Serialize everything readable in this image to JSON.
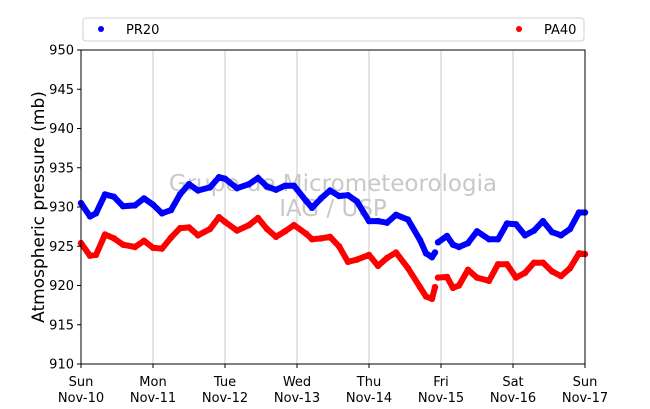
{
  "chart_data": {
    "type": "scatter",
    "title": "",
    "xlabel": "",
    "ylabel": "Atmospheric pressure (mb)",
    "ylim": [
      910,
      950
    ],
    "yticks": [
      910,
      915,
      920,
      925,
      930,
      935,
      940,
      945,
      950
    ],
    "xlim": [
      "2024-11-10",
      "2024-11-17"
    ],
    "xticks": [
      {
        "day": "Sun",
        "date": "Nov-10"
      },
      {
        "day": "Mon",
        "date": "Nov-11"
      },
      {
        "day": "Tue",
        "date": "Nov-12"
      },
      {
        "day": "Wed",
        "date": "Nov-13"
      },
      {
        "day": "Thu",
        "date": "Nov-14"
      },
      {
        "day": "Fri",
        "date": "Nov-15"
      },
      {
        "day": "Sat",
        "date": "Nov-16"
      },
      {
        "day": "Sun",
        "date": "Nov-17"
      }
    ],
    "grid": "x-major",
    "legend": "top",
    "watermark": [
      "Grupo de Micrometeorologia",
      "IAG / USP"
    ],
    "series": [
      {
        "name": "PR20",
        "color": "#0000ff",
        "x": [
          "2024-11-10 00:00",
          "2024-11-10 03:00",
          "2024-11-10 05:00",
          "2024-11-10 08:00",
          "2024-11-10 11:00",
          "2024-11-10 14:00",
          "2024-11-10 18:00",
          "2024-11-10 21:00",
          "2024-11-11 00:00",
          "2024-11-11 03:00",
          "2024-11-11 06:00",
          "2024-11-11 09:00",
          "2024-11-11 12:00",
          "2024-11-11 15:00",
          "2024-11-11 19:00",
          "2024-11-11 22:00",
          "2024-11-12 00:00",
          "2024-11-12 04:00",
          "2024-11-12 08:00",
          "2024-11-12 11:00",
          "2024-11-12 14:00",
          "2024-11-12 17:00",
          "2024-11-12 20:00",
          "2024-11-12 23:00",
          "2024-11-13 03:00",
          "2024-11-13 05:00",
          "2024-11-13 08:00",
          "2024-11-13 11:00",
          "2024-11-13 14:00",
          "2024-11-13 17:00",
          "2024-11-13 20:00",
          "2024-11-14 00:00",
          "2024-11-14 03:00",
          "2024-11-14 06:00",
          "2024-11-14 09:00",
          "2024-11-14 13:00",
          "2024-11-14 17:00",
          "2024-11-14 19:00",
          "2024-11-14 21:00",
          "2024-11-14 22:00",
          "2024-11-14 23:00",
          "2024-11-15 02:00",
          "2024-11-15 04:00",
          "2024-11-15 06:00",
          "2024-11-15 09:00",
          "2024-11-15 12:00",
          "2024-11-15 16:00",
          "2024-11-15 19:00",
          "2024-11-15 22:00",
          "2024-11-16 01:00",
          "2024-11-16 04:00",
          "2024-11-16 07:00",
          "2024-11-16 10:00",
          "2024-11-16 13:00",
          "2024-11-16 16:00",
          "2024-11-16 19:00",
          "2024-11-16 22:00",
          "2024-11-17 00:00"
        ],
        "y": [
          930.5,
          928.8,
          929.2,
          931.6,
          931.3,
          930.1,
          930.2,
          931.1,
          930.3,
          929.2,
          929.6,
          931.6,
          932.9,
          932.1,
          932.5,
          933.8,
          933.6,
          932.4,
          932.9,
          933.7,
          932.6,
          932.2,
          932.7,
          932.7,
          930.8,
          929.9,
          931.1,
          932.1,
          931.4,
          931.5,
          930.7,
          928.2,
          928.2,
          928.0,
          929.0,
          928.4,
          925.8,
          924.1,
          923.6,
          924.2,
          925.5,
          926.3,
          925.2,
          924.9,
          925.4,
          926.9,
          925.9,
          925.9,
          927.9,
          927.8,
          926.4,
          927.0,
          928.2,
          926.8,
          926.4,
          927.2,
          929.3,
          929.3
        ]
      },
      {
        "name": "PA40",
        "color": "#ff0000",
        "x": [
          "2024-11-10 00:00",
          "2024-11-10 03:00",
          "2024-11-10 05:00",
          "2024-11-10 08:00",
          "2024-11-10 11:00",
          "2024-11-10 14:00",
          "2024-11-10 18:00",
          "2024-11-10 21:00",
          "2024-11-11 00:00",
          "2024-11-11 03:00",
          "2024-11-11 06:00",
          "2024-11-11 09:00",
          "2024-11-11 12:00",
          "2024-11-11 15:00",
          "2024-11-11 19:00",
          "2024-11-11 22:00",
          "2024-11-12 00:00",
          "2024-11-12 04:00",
          "2024-11-12 08:00",
          "2024-11-12 11:00",
          "2024-11-12 14:00",
          "2024-11-12 17:00",
          "2024-11-12 20:00",
          "2024-11-12 23:00",
          "2024-11-13 03:00",
          "2024-11-13 05:00",
          "2024-11-13 08:00",
          "2024-11-13 11:00",
          "2024-11-13 14:00",
          "2024-11-13 17:00",
          "2024-11-13 20:00",
          "2024-11-14 00:00",
          "2024-11-14 03:00",
          "2024-11-14 06:00",
          "2024-11-14 09:00",
          "2024-11-14 13:00",
          "2024-11-14 17:00",
          "2024-11-14 19:00",
          "2024-11-14 21:00",
          "2024-11-14 22:00",
          "2024-11-14 23:00",
          "2024-11-15 02:00",
          "2024-11-15 04:00",
          "2024-11-15 06:00",
          "2024-11-15 09:00",
          "2024-11-15 12:00",
          "2024-11-15 16:00",
          "2024-11-15 19:00",
          "2024-11-15 22:00",
          "2024-11-16 01:00",
          "2024-11-16 04:00",
          "2024-11-16 07:00",
          "2024-11-16 10:00",
          "2024-11-16 13:00",
          "2024-11-16 16:00",
          "2024-11-16 19:00",
          "2024-11-16 22:00",
          "2024-11-17 00:00"
        ],
        "y": [
          925.4,
          923.8,
          923.9,
          926.5,
          926.0,
          925.2,
          924.9,
          925.7,
          924.8,
          924.7,
          926.1,
          927.3,
          927.4,
          926.4,
          927.2,
          928.7,
          928.1,
          927.0,
          927.7,
          928.6,
          927.2,
          926.2,
          926.9,
          927.7,
          926.6,
          925.9,
          926.0,
          926.2,
          925.0,
          923.0,
          923.3,
          923.9,
          922.5,
          923.5,
          924.2,
          922.2,
          919.8,
          918.6,
          918.3,
          919.8,
          921.0,
          921.1,
          919.7,
          920.0,
          922.0,
          921.0,
          920.6,
          922.7,
          922.7,
          921.0,
          921.6,
          922.9,
          922.9,
          921.8,
          921.2,
          922.2,
          924.1,
          924.0
        ]
      }
    ]
  }
}
